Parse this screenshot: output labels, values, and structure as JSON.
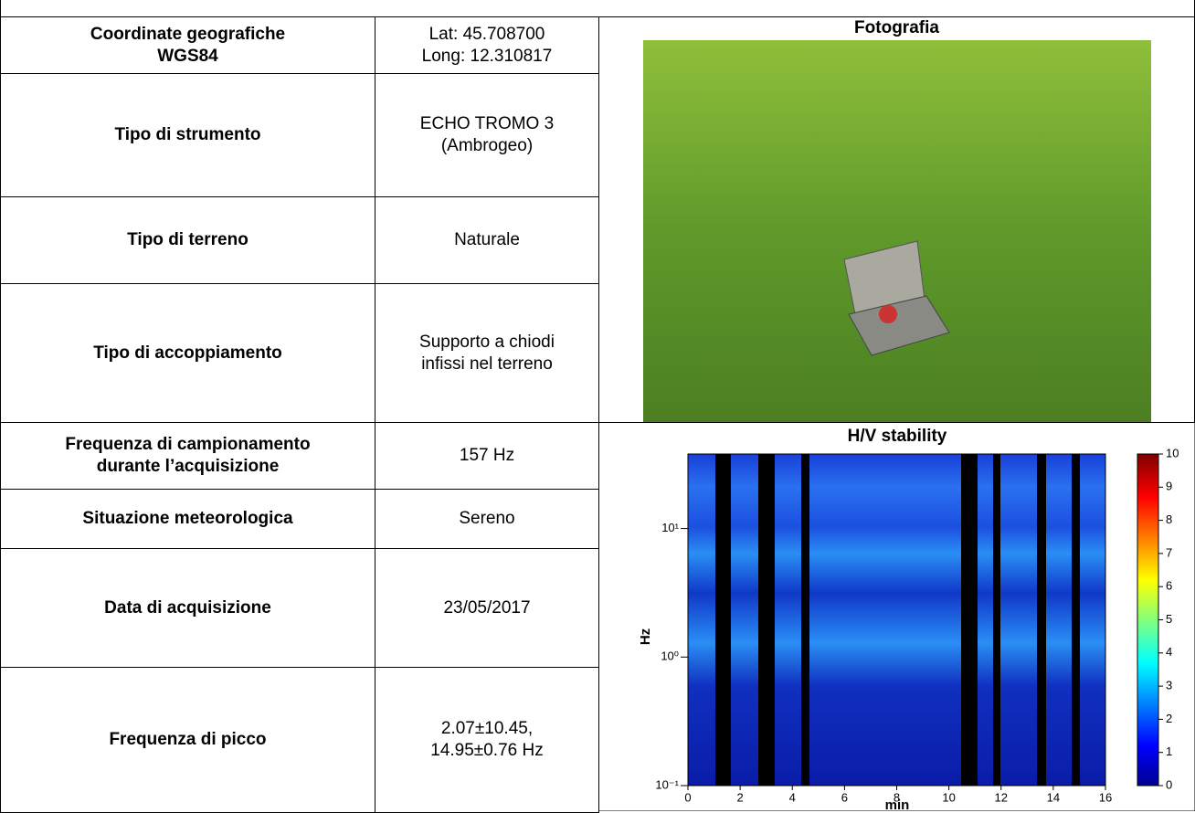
{
  "table": {
    "rows": [
      {
        "label": [
          "Coordinate geografiche",
          "WGS84"
        ],
        "value": [
          "Lat: 45.708700",
          "Long: 12.310817"
        ]
      },
      {
        "label": [
          "Tipo di strumento"
        ],
        "value": [
          "ECHO TROMO 3",
          "(Ambrogeo)"
        ]
      },
      {
        "label": [
          "Tipo di terreno"
        ],
        "value": [
          "Naturale"
        ]
      },
      {
        "label": [
          "Tipo di accoppiamento"
        ],
        "value": [
          "Supporto a chiodi",
          "infissi nel terreno"
        ]
      },
      {
        "label": [
          "Frequenza di campionamento",
          "durante l’acquisizione"
        ],
        "value": [
          "157 Hz"
        ]
      },
      {
        "label": [
          "Situazione meteorologica"
        ],
        "value": [
          "Sereno"
        ]
      },
      {
        "label": [
          "Data di acquisizione"
        ],
        "value": [
          "23/05/2017"
        ]
      },
      {
        "label": [
          "Frequenza di picco"
        ],
        "value": [
          "2.07±10.45,",
          "14.95±0.76 Hz"
        ]
      }
    ]
  },
  "photo": {
    "title": "Fotografia"
  },
  "chart_data": {
    "type": "heatmap",
    "title": "H/V stability",
    "x_label": "min",
    "y_label": "Hz",
    "xlim": [
      0,
      16
    ],
    "xticks": [
      0,
      2,
      4,
      6,
      8,
      10,
      12,
      14,
      16
    ],
    "ylim": [
      0.1,
      38
    ],
    "log_y": true,
    "yticks": [
      {
        "value": 0.1,
        "label": "10⁻¹"
      },
      {
        "value": 1,
        "label": "10⁰"
      },
      {
        "value": 10,
        "label": "10¹"
      }
    ],
    "colorbar": {
      "lim": [
        0,
        10
      ],
      "ticks": [
        0,
        1,
        2,
        3,
        4,
        5,
        6,
        7,
        8,
        9,
        10
      ]
    }
  }
}
